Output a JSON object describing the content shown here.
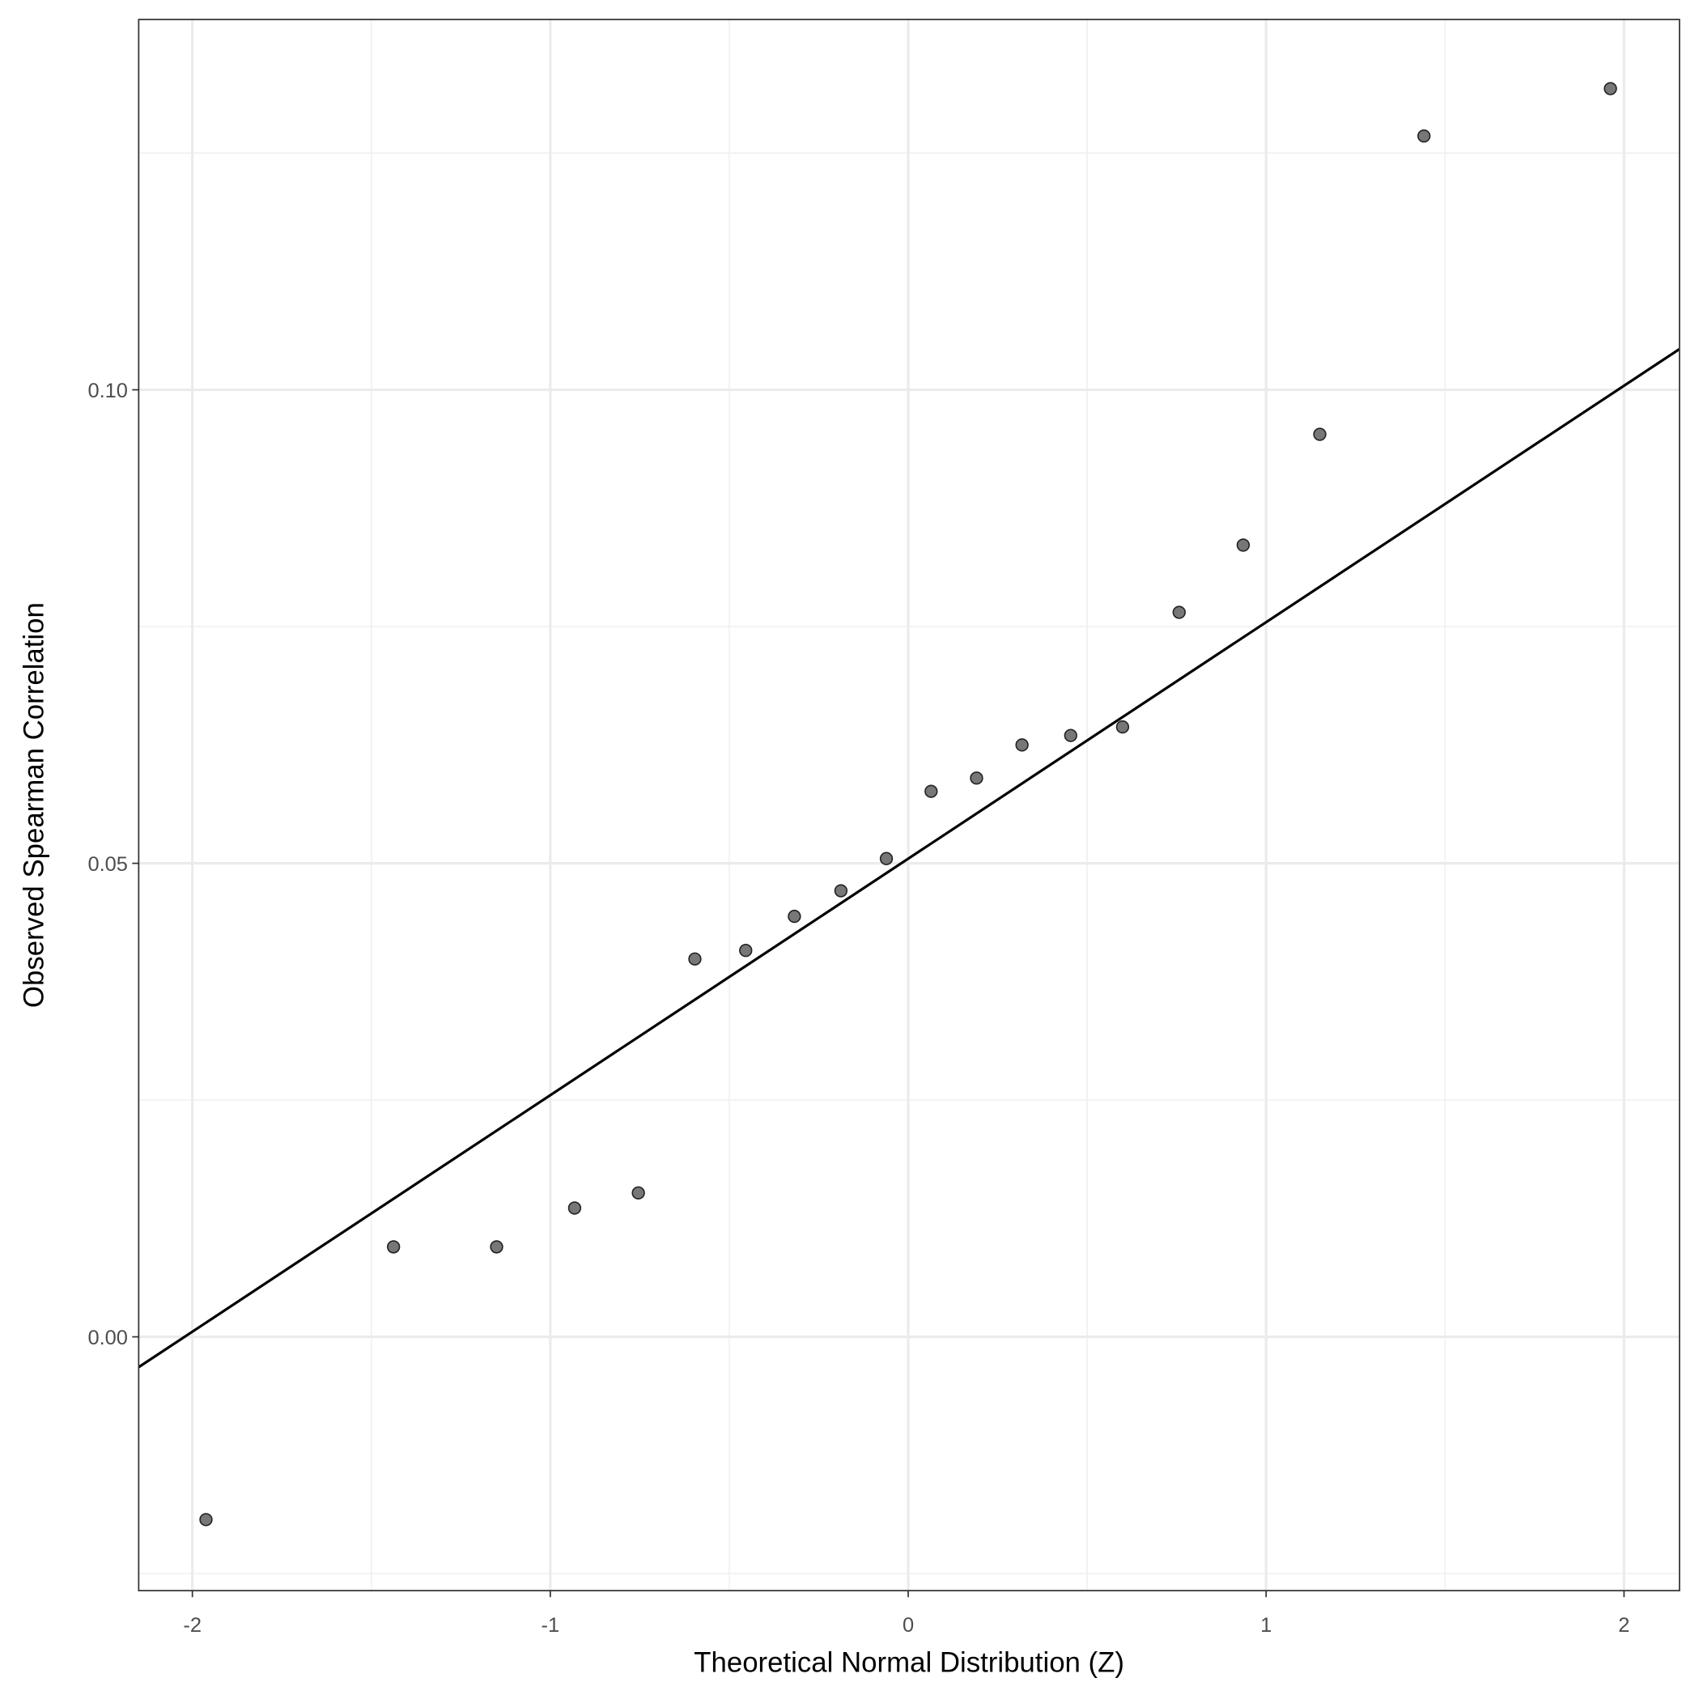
{
  "chart_data": {
    "type": "scatter",
    "x_label": "Theoretical Normal Distribution (Z)",
    "y_label": "Observed Spearman Correlation",
    "x": [
      -1.962,
      -1.438,
      -1.15,
      -0.932,
      -0.754,
      -0.596,
      -0.454,
      -0.318,
      -0.188,
      -0.061,
      0.064,
      0.191,
      0.318,
      0.454,
      0.599,
      0.757,
      0.936,
      1.15,
      1.441,
      1.962
    ],
    "values": [
      -0.0193,
      0.0095,
      0.0095,
      0.0136,
      0.0152,
      0.0399,
      0.0408,
      0.0444,
      0.0471,
      0.0505,
      0.0576,
      0.059,
      0.0625,
      0.0635,
      0.0644,
      0.0765,
      0.0836,
      0.0953,
      0.1268,
      0.1318
    ],
    "color": "#777777",
    "reference_line": {
      "x": [
        -2.15,
        2.155
      ],
      "y": [
        -0.0032,
        0.1043
      ],
      "color": "#000000"
    },
    "xlim": [
      -2.15,
      2.155
    ],
    "ylim": [
      -0.0268,
      0.1391
    ],
    "xticks": [
      -2,
      -1,
      0,
      1,
      2
    ],
    "yticks": [
      {
        "value": 0,
        "label": "0.00"
      },
      {
        "value": 0.05,
        "label": "0.05"
      },
      {
        "value": 0.1,
        "label": "0.10"
      }
    ],
    "minor_xticks": [
      -1.5,
      -0.5,
      0.5,
      1.5
    ],
    "minor_yticks": [
      -0.025,
      0.025,
      0.075,
      0.125
    ],
    "grid": true
  }
}
